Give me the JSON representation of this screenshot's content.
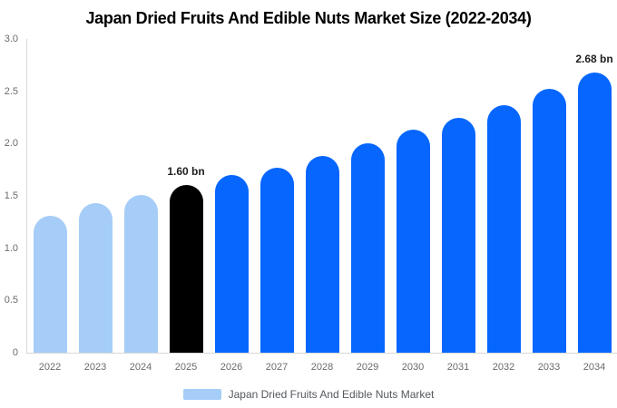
{
  "chart_data": {
    "type": "bar",
    "title": "Japan Dried Fruits And Edible Nuts Market Size (2022-2034)",
    "categories": [
      "2022",
      "2023",
      "2024",
      "2025",
      "2026",
      "2027",
      "2028",
      "2029",
      "2030",
      "2031",
      "2032",
      "2033",
      "2034"
    ],
    "values": [
      1.31,
      1.43,
      1.51,
      1.6,
      1.7,
      1.77,
      1.88,
      2.0,
      2.13,
      2.25,
      2.37,
      2.52,
      2.68
    ],
    "bar_colors": [
      "#a6cdf8",
      "#a6cdf8",
      "#a6cdf8",
      "#000000",
      "#0666fe",
      "#0666fe",
      "#0666fe",
      "#0666fe",
      "#0666fe",
      "#0666fe",
      "#0666fe",
      "#0666fe",
      "#0666fe"
    ],
    "ylim": [
      0,
      3.0
    ],
    "ytick_values": [
      3.0,
      2.5,
      2.0,
      1.5,
      1.0,
      0.5,
      0
    ],
    "ytick_labels": [
      "3.0",
      "2.5",
      "2.0",
      "1.5",
      "1.0",
      "0.5",
      "0"
    ],
    "grid": false,
    "xlabel": "",
    "ylabel": "",
    "annotations": [
      {
        "category": "2025",
        "text": "1.60 bn"
      },
      {
        "category": "2034",
        "text": "2.68 bn"
      }
    ],
    "legend": {
      "label": "Japan Dried Fruits And Edible Nuts Market",
      "swatch_color": "#a6cdf8",
      "position": "bottom"
    },
    "colors": {
      "historical_bar": "#a6cdf8",
      "base_year_bar": "#000000",
      "forecast_bar": "#0666fe",
      "axis_line": "#d8d8d8",
      "tick_text": "#6b6b6b",
      "annotation_text": "#1f1f1f",
      "legend_text": "#54585e",
      "background": "#ffffff"
    }
  }
}
